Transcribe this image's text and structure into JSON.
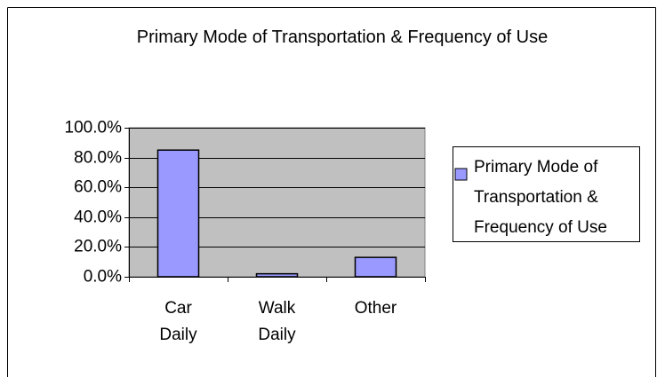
{
  "chart_data": {
    "type": "bar",
    "title": "Primary Mode of Transportation & Frequency of Use",
    "categories": [
      "Car Daily",
      "Walk Daily",
      "Other"
    ],
    "series": [
      {
        "name": "Primary Mode of Transportation & Frequency of Use",
        "color": "#9999ff",
        "values": [
          85,
          2,
          13
        ]
      }
    ],
    "ylim": [
      0,
      100
    ],
    "yticks": [
      {
        "value": 0,
        "label": "0.0%"
      },
      {
        "value": 20,
        "label": "20.0%"
      },
      {
        "value": 40,
        "label": "40.0%"
      },
      {
        "value": 60,
        "label": "60.0%"
      },
      {
        "value": 80,
        "label": "80.0%"
      },
      {
        "value": 100,
        "label": "100.0%"
      }
    ],
    "grid": true,
    "legend": "right"
  }
}
